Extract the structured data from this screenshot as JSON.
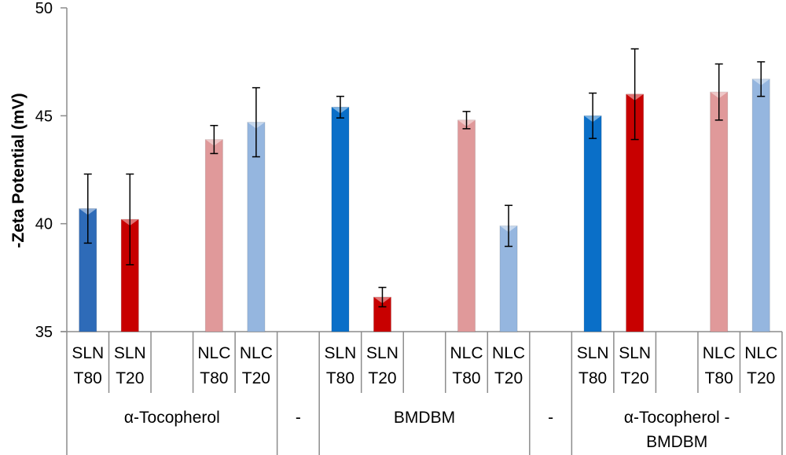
{
  "chart_data": {
    "type": "bar",
    "title": "",
    "ylabel": "-Zeta Potential (mV)",
    "xlabel": "",
    "ylim": [
      35,
      50
    ],
    "yticks": [
      35,
      40,
      45,
      50
    ],
    "grid": false,
    "legend": "none",
    "slots": [
      {
        "label": [
          "SLN",
          "T80"
        ],
        "value": 40.7,
        "error": 1.6,
        "color": "#2e6bb8",
        "group": 0
      },
      {
        "label": [
          "SLN",
          "T20"
        ],
        "value": 40.2,
        "error": 2.1,
        "color": "#c80000",
        "group": 0
      },
      {
        "label": null,
        "group": 0
      },
      {
        "label": [
          "NLC",
          "T80"
        ],
        "value": 43.9,
        "error": 0.65,
        "color": "#e0999a",
        "group": 0
      },
      {
        "label": [
          "NLC",
          "T20"
        ],
        "value": 44.7,
        "error": 1.6,
        "color": "#95b6df",
        "group": 0
      },
      {
        "label": null,
        "group": 1
      },
      {
        "label": [
          "SLN",
          "T80"
        ],
        "value": 45.4,
        "error": 0.5,
        "color": "#0a6fc8",
        "group": 2
      },
      {
        "label": [
          "SLN",
          "T20"
        ],
        "value": 36.6,
        "error": 0.45,
        "color": "#c80000",
        "group": 2
      },
      {
        "label": null,
        "group": 2
      },
      {
        "label": [
          "NLC",
          "T80"
        ],
        "value": 44.8,
        "error": 0.4,
        "color": "#e0999a",
        "group": 2
      },
      {
        "label": [
          "NLC",
          "T20"
        ],
        "value": 39.9,
        "error": 0.95,
        "color": "#95b6df",
        "group": 2
      },
      {
        "label": null,
        "group": 3
      },
      {
        "label": [
          "SLN",
          "T80"
        ],
        "value": 45.0,
        "error": 1.05,
        "color": "#0a6fc8",
        "group": 4
      },
      {
        "label": [
          "SLN",
          "T20"
        ],
        "value": 46.0,
        "error": 2.1,
        "color": "#c80000",
        "group": 4
      },
      {
        "label": null,
        "group": 4
      },
      {
        "label": [
          "NLC",
          "T80"
        ],
        "value": 46.1,
        "error": 1.3,
        "color": "#e0999a",
        "group": 4
      },
      {
        "label": [
          "NLC",
          "T20"
        ],
        "value": 46.7,
        "error": 0.8,
        "color": "#95b6df",
        "group": 4
      }
    ],
    "groups": [
      {
        "label": [
          "α-Tocopherol"
        ]
      },
      {
        "label": [
          "-"
        ]
      },
      {
        "label": [
          "BMDBM"
        ]
      },
      {
        "label": [
          "-"
        ]
      },
      {
        "label": [
          "α-Tocopherol -",
          "BMDBM"
        ]
      }
    ]
  }
}
